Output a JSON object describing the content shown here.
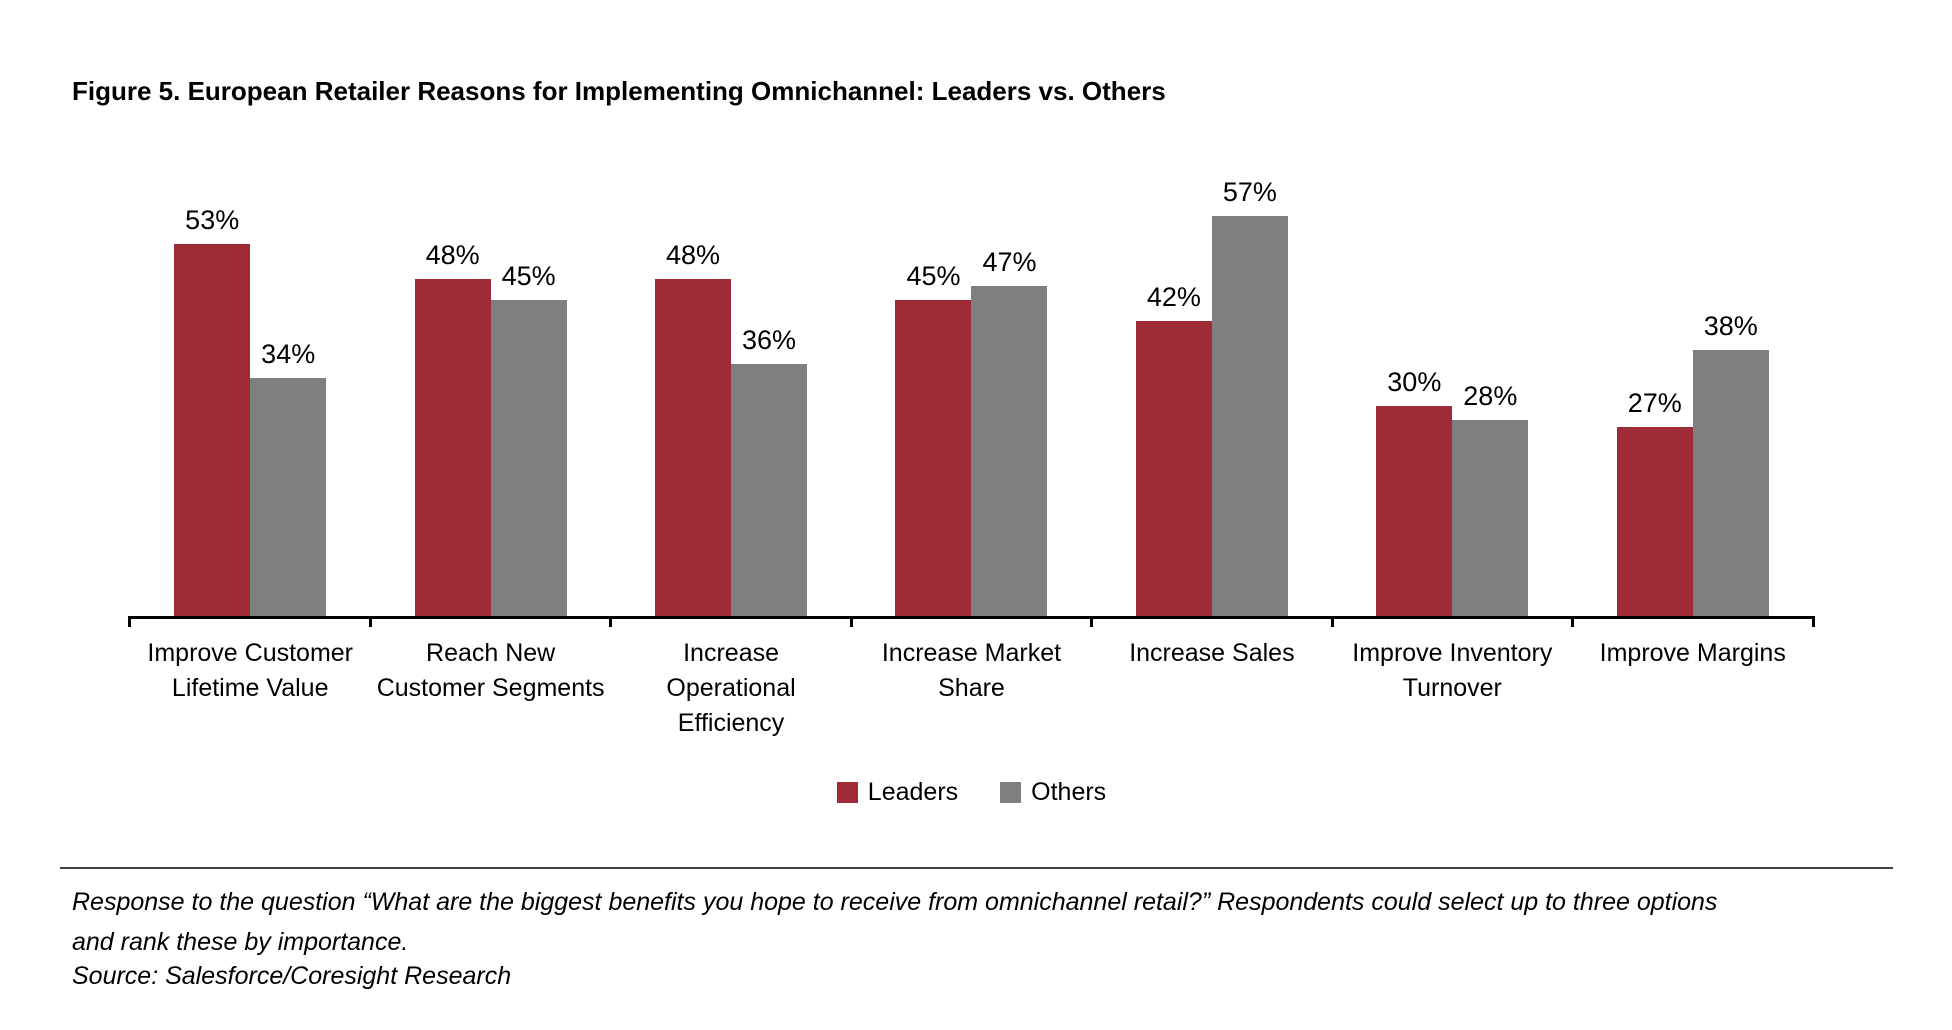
{
  "title": "Figure 5. European Retailer Reasons for Implementing Omnichannel: Leaders vs. Others",
  "colors": {
    "leaders": "#9E2B36",
    "others": "#7F7F7F",
    "axis": "#000000",
    "rule": "#404040"
  },
  "chart_data": {
    "type": "bar",
    "categories": [
      "Improve Customer Lifetime Value",
      "Reach New Customer Segments",
      "Increase Operational Efficiency",
      "Increase Market Share",
      "Increase Sales",
      "Improve Inventory Turnover",
      "Improve Margins"
    ],
    "series": [
      {
        "name": "Leaders",
        "color": "#9E2B36",
        "values": [
          53,
          48,
          48,
          45,
          42,
          30,
          27
        ]
      },
      {
        "name": "Others",
        "color": "#7F7F7F",
        "values": [
          34,
          45,
          36,
          47,
          57,
          28,
          38
        ]
      }
    ],
    "value_suffix": "%",
    "title": "Figure 5. European Retailer Reasons for Implementing Omnichannel: Leaders vs. Others",
    "xlabel": "",
    "ylabel": "",
    "ylim": [
      0,
      60
    ],
    "grid": false,
    "data_labels": true,
    "legend_position": "bottom"
  },
  "legend": [
    {
      "label": "Leaders",
      "color": "#9E2B36"
    },
    {
      "label": "Others",
      "color": "#7F7F7F"
    }
  ],
  "footnote_lines": [
    "Response to the question “What are the biggest benefits you hope to receive from omnichannel retail?” Respondents could select up to three options",
    "and rank these by importance."
  ],
  "source": "Source: Salesforce/Coresight Research"
}
